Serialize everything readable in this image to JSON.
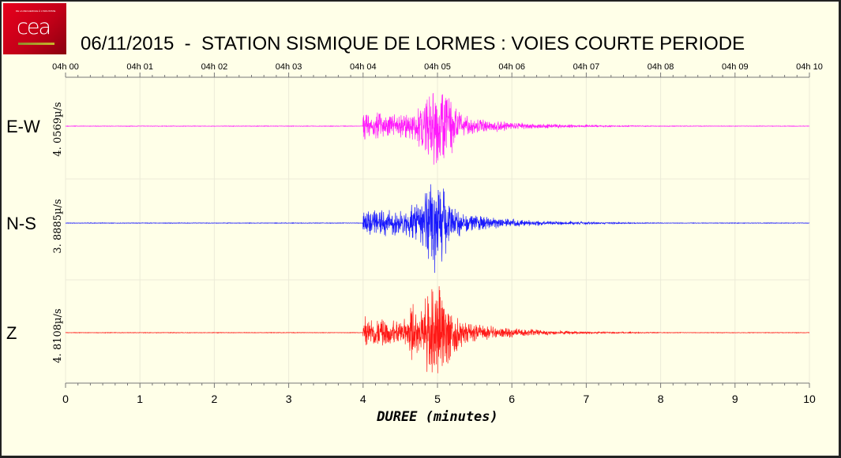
{
  "logo": {
    "text": "cea",
    "tagline": "DE LA RECHERCHE À L'INDUSTRIE"
  },
  "title": "06/11/2015  -  STATION SISMIQUE DE LORMES : VOIES COURTE PERIODE",
  "colors": {
    "background": "#ffffe8",
    "E-W": "#ff00ff",
    "N-S": "#0000ff",
    "Z": "#ff0000",
    "logo": "#d0001a"
  },
  "chart_data": {
    "type": "line",
    "title": "06/11/2015  -  STATION SISMIQUE DE LORMES : VOIES COURTE PERIODE",
    "xlabel": "DUREE (minutes)",
    "xlim": [
      0,
      10
    ],
    "x_ticks": [
      "0",
      "1",
      "2",
      "3",
      "4",
      "5",
      "6",
      "7",
      "8",
      "9",
      "10"
    ],
    "top_axis_ticks": [
      "04h 00",
      "04h 01",
      "04h 02",
      "04h 03",
      "04h 04",
      "04h 05",
      "04h 06",
      "04h 07",
      "04h 08",
      "04h 09",
      "04h 10"
    ],
    "grid": true,
    "series": [
      {
        "name": "E-W",
        "amplitude_label": "4. 0569µ/s",
        "peak_amplitude_um_s": 4.0569,
        "signal_onset_min": 4.0,
        "peak_time_min": 5.0,
        "color": "#ff00ff"
      },
      {
        "name": "N-S",
        "amplitude_label": "3. 8885µ/s",
        "peak_amplitude_um_s": 3.8885,
        "signal_onset_min": 4.0,
        "peak_time_min": 4.95,
        "color": "#0000ff"
      },
      {
        "name": "Z",
        "amplitude_label": "4. 8108µ/s",
        "peak_amplitude_um_s": 4.8108,
        "signal_onset_min": 4.0,
        "peak_time_min": 5.0,
        "color": "#ff0000"
      }
    ]
  }
}
